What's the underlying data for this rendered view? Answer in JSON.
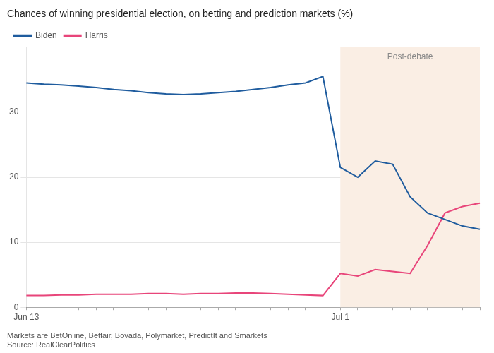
{
  "chart_data": {
    "type": "line",
    "title": "Chances of winning presidential election, on betting and prediction markets (%)",
    "categories": [
      "Jun 13",
      null,
      null,
      null,
      null,
      null,
      null,
      null,
      null,
      null,
      null,
      null,
      null,
      null,
      null,
      null,
      null,
      null,
      "Jul 1",
      null,
      null,
      null,
      null,
      null,
      null,
      null,
      null
    ],
    "series": [
      {
        "name": "Biden",
        "color": "#1f5c9e",
        "values": [
          34.5,
          34.3,
          34.2,
          34.0,
          33.8,
          33.5,
          33.3,
          33.0,
          32.8,
          32.7,
          32.8,
          33.0,
          33.2,
          33.5,
          33.8,
          34.2,
          34.5,
          35.5,
          21.5,
          20.0,
          22.5,
          22.0,
          17.0,
          14.5,
          13.5,
          12.5,
          12.0
        ]
      },
      {
        "name": "Harris",
        "color": "#e8457a",
        "values": [
          1.8,
          1.8,
          1.9,
          1.9,
          2.0,
          2.0,
          2.0,
          2.1,
          2.1,
          2.0,
          2.1,
          2.1,
          2.2,
          2.2,
          2.1,
          2.0,
          1.9,
          1.8,
          5.2,
          4.8,
          5.8,
          5.5,
          5.2,
          9.5,
          14.5,
          15.5,
          16.0
        ]
      }
    ],
    "ylim": [
      0,
      40
    ],
    "yticks": [
      0,
      10,
      20,
      30
    ],
    "grid": true,
    "legend": "upper left",
    "annotations": [
      {
        "text": "Post-debate",
        "x_start": "Jul 1",
        "color": "#faeee4"
      }
    ],
    "footer": [
      "Markets are BetOnline, Betfair, Bovada, Polymarket, PredictIt and Smarkets",
      "Source: RealClearPolitics"
    ]
  }
}
